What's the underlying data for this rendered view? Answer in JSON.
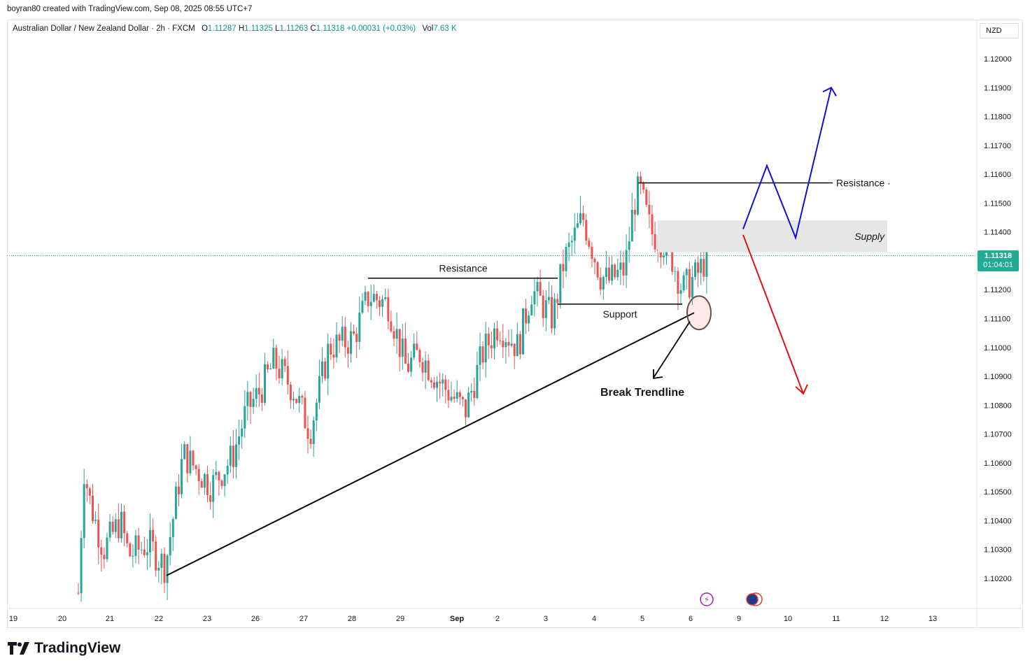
{
  "header": {
    "caption": "boyran80 created with TradingView.com, Sep 08, 2025 08:55 UTC+7"
  },
  "legend": {
    "symbol": "Australian Dollar / New Zealand Dollar · 2h · FXCM",
    "open_label": "O",
    "open": "1.11287",
    "high_label": "H",
    "high": "1.11325",
    "low_label": "L",
    "low": "1.11263",
    "close_label": "C",
    "close": "1.11318",
    "change": "+0.00031 (+0.03%)",
    "vol_label": "Vol",
    "vol": "7.63 K"
  },
  "price_axis": {
    "currency": "NZD",
    "current_price": "1.11318",
    "countdown": "01:04:01"
  },
  "brand": {
    "name": "TradingView"
  },
  "colors": {
    "up": "#26a69a",
    "down": "#ef5350",
    "bull_path": "#1010d0",
    "bear_path": "#e01010",
    "supply_zone": "#e6e6e6",
    "current_price_bg": "#22ab94"
  },
  "chart_data": {
    "type": "candlestick",
    "interval": "2h",
    "x_ticks": [
      "19",
      "20",
      "21",
      "22",
      "23",
      "26",
      "27",
      "28",
      "29",
      "Sep",
      "2",
      "3",
      "4",
      "5",
      "6",
      "9",
      "10",
      "11",
      "12",
      "13"
    ],
    "y_ticks": [
      "1.12000",
      "1.11900",
      "1.11800",
      "1.11700",
      "1.11600",
      "1.11500",
      "1.11400",
      "1.11300",
      "1.11200",
      "1.11100",
      "1.11000",
      "1.10900",
      "1.10800",
      "1.10700",
      "1.10600",
      "1.10500",
      "1.10400",
      "1.10300",
      "1.10200"
    ],
    "ylim": [
      1.1015,
      1.1209
    ],
    "last_price": 1.11318,
    "series": [
      {
        "name": "AUD/NZD",
        "description": "2h candles rising from about 1.1015 (Aug 20) to about 1.1157 (Sep 5), then retracing to about 1.1132"
      }
    ],
    "annotations": [
      {
        "type": "text",
        "text": "Resistance",
        "level": 1.1124
      },
      {
        "type": "text",
        "text": "Support",
        "level": 1.1115
      },
      {
        "type": "text",
        "text": "Resistance",
        "level": 1.1157
      },
      {
        "type": "zone",
        "text": "Supply",
        "from": 1.1133,
        "to": 1.1144
      },
      {
        "type": "text",
        "text": "Break Trendline"
      },
      {
        "type": "trendline",
        "from": 1.1021,
        "to": 1.1112
      },
      {
        "type": "path",
        "direction": "bullish",
        "levels": [
          1.1141,
          1.1163,
          1.1138,
          1.119
        ]
      },
      {
        "type": "path",
        "direction": "bearish",
        "levels": [
          1.1139,
          1.1084
        ]
      }
    ]
  }
}
